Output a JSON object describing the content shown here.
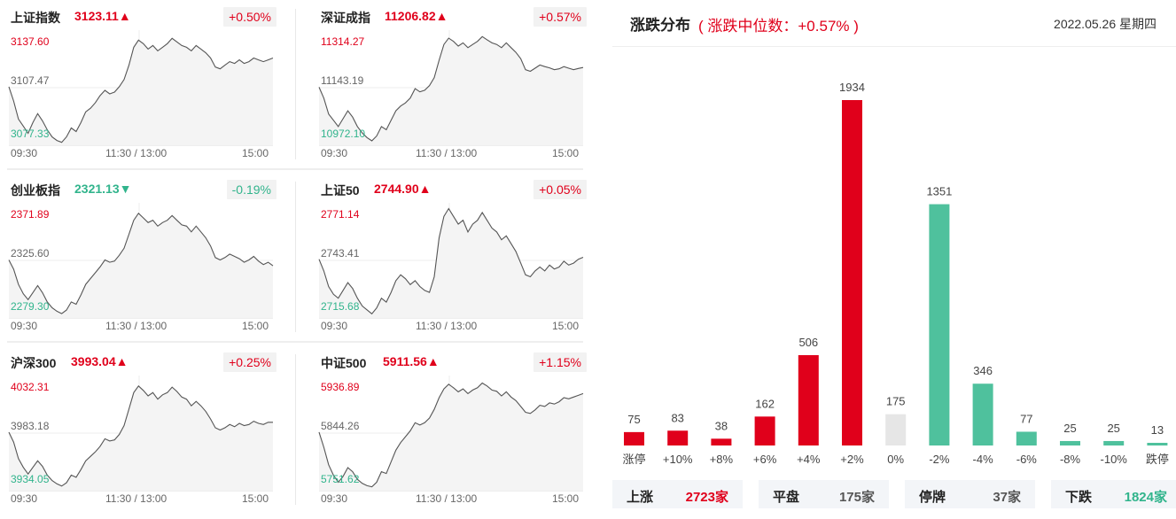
{
  "indices": [
    {
      "name": "上证指数",
      "value": "3123.11",
      "change_pct": "+0.50%",
      "direction": "up",
      "y_high": "3137.60",
      "y_mid": "3107.47",
      "y_low": "3077.33",
      "x_start": "09:30",
      "x_mid": "11:30 / 13:00",
      "x_end": "15:00",
      "series": [
        3108,
        3100,
        3090,
        3086,
        3082,
        3088,
        3093,
        3089,
        3084,
        3080,
        3078,
        3077,
        3080,
        3085,
        3083,
        3088,
        3094,
        3096,
        3099,
        3103,
        3106,
        3104,
        3105,
        3108,
        3112,
        3120,
        3130,
        3134,
        3132,
        3129,
        3131,
        3128,
        3130,
        3132,
        3135,
        3133,
        3131,
        3130,
        3128,
        3131,
        3129,
        3127,
        3124,
        3119,
        3118,
        3120,
        3122,
        3121,
        3123,
        3121,
        3122,
        3124,
        3123,
        3122,
        3123,
        3124
      ]
    },
    {
      "name": "深证成指",
      "value": "11206.82",
      "change_pct": "+0.57%",
      "direction": "up",
      "y_high": "11314.27",
      "y_mid": "11143.19",
      "y_low": "10972.10",
      "x_start": "09:30",
      "x_mid": "11:30 / 13:00",
      "x_end": "15:00",
      "series": [
        11145,
        11110,
        11060,
        11040,
        11020,
        11045,
        11070,
        11050,
        11020,
        11000,
        10985,
        10975,
        10990,
        11020,
        11010,
        11040,
        11070,
        11085,
        11095,
        11110,
        11140,
        11130,
        11135,
        11150,
        11175,
        11230,
        11280,
        11300,
        11290,
        11275,
        11285,
        11270,
        11280,
        11290,
        11305,
        11295,
        11285,
        11280,
        11270,
        11285,
        11270,
        11255,
        11235,
        11200,
        11195,
        11205,
        11215,
        11210,
        11206,
        11200,
        11203,
        11210,
        11205,
        11200,
        11204,
        11207
      ]
    },
    {
      "name": "创业板指",
      "value": "2321.13",
      "change_pct": "-0.19%",
      "direction": "down",
      "y_high": "2371.89",
      "y_mid": "2325.60",
      "y_low": "2279.30",
      "x_start": "09:30",
      "x_mid": "11:30 / 13:00",
      "x_end": "15:00",
      "series": [
        2326,
        2318,
        2305,
        2297,
        2292,
        2298,
        2304,
        2298,
        2290,
        2285,
        2282,
        2280,
        2283,
        2290,
        2288,
        2296,
        2305,
        2310,
        2315,
        2320,
        2326,
        2324,
        2325,
        2330,
        2336,
        2348,
        2360,
        2366,
        2362,
        2358,
        2360,
        2355,
        2358,
        2360,
        2364,
        2360,
        2356,
        2355,
        2350,
        2355,
        2350,
        2345,
        2338,
        2328,
        2326,
        2328,
        2331,
        2329,
        2327,
        2324,
        2326,
        2329,
        2325,
        2322,
        2324,
        2321
      ]
    },
    {
      "name": "上证50",
      "value": "2744.90",
      "change_pct": "+0.05%",
      "direction": "up",
      "y_high": "2771.14",
      "y_mid": "2743.41",
      "y_low": "2715.68",
      "x_start": "09:30",
      "x_mid": "11:30 / 13:00",
      "x_end": "15:00",
      "series": [
        2744,
        2738,
        2730,
        2726,
        2724,
        2728,
        2732,
        2729,
        2724,
        2720,
        2718,
        2716,
        2719,
        2724,
        2722,
        2727,
        2733,
        2736,
        2734,
        2731,
        2733,
        2730,
        2728,
        2727,
        2735,
        2755,
        2766,
        2770,
        2766,
        2762,
        2764,
        2758,
        2762,
        2764,
        2768,
        2764,
        2760,
        2758,
        2754,
        2756,
        2752,
        2748,
        2742,
        2736,
        2735,
        2738,
        2740,
        2738,
        2741,
        2739,
        2740,
        2743,
        2741,
        2742,
        2744,
        2745
      ]
    },
    {
      "name": "沪深300",
      "value": "3993.04",
      "change_pct": "+0.25%",
      "direction": "up",
      "y_high": "4032.31",
      "y_mid": "3983.18",
      "y_low": "3934.05",
      "x_start": "09:30",
      "x_mid": "11:30 / 13:00",
      "x_end": "15:00",
      "series": [
        3984,
        3975,
        3960,
        3952,
        3946,
        3952,
        3958,
        3953,
        3945,
        3940,
        3937,
        3935,
        3938,
        3945,
        3943,
        3950,
        3958,
        3962,
        3966,
        3971,
        3978,
        3976,
        3977,
        3982,
        3990,
        4005,
        4020,
        4026,
        4022,
        4017,
        4020,
        4014,
        4018,
        4020,
        4025,
        4021,
        4016,
        4014,
        4008,
        4012,
        4008,
        4003,
        3996,
        3988,
        3986,
        3988,
        3991,
        3989,
        3992,
        3990,
        3991,
        3994,
        3992,
        3991,
        3993,
        3993
      ]
    },
    {
      "name": "中证500",
      "value": "5911.56",
      "change_pct": "+1.15%",
      "direction": "up",
      "y_high": "5936.89",
      "y_mid": "5844.26",
      "y_low": "5751.62",
      "x_start": "09:30",
      "x_mid": "11:30 / 13:00",
      "x_end": "15:00",
      "series": [
        5846,
        5820,
        5790,
        5772,
        5760,
        5770,
        5785,
        5778,
        5765,
        5758,
        5754,
        5752,
        5760,
        5778,
        5775,
        5795,
        5815,
        5828,
        5838,
        5848,
        5862,
        5858,
        5862,
        5870,
        5885,
        5905,
        5920,
        5928,
        5922,
        5915,
        5920,
        5912,
        5918,
        5922,
        5930,
        5925,
        5918,
        5916,
        5908,
        5915,
        5906,
        5900,
        5890,
        5880,
        5878,
        5884,
        5892,
        5890,
        5896,
        5894,
        5898,
        5905,
        5903,
        5906,
        5909,
        5912
      ]
    }
  ],
  "distribution": {
    "title": "涨跌分布",
    "median_text": "( 涨跌中位数：+0.57% )",
    "date": "2022.05.26 星期四",
    "colors": {
      "up": "#e0001b",
      "flat": "#e6e6e6",
      "down": "#4fc19d"
    },
    "chart_data": {
      "type": "bar",
      "categories": [
        "涨停",
        "+10%",
        "+8%",
        "+6%",
        "+4%",
        "+2%",
        "0%",
        "-2%",
        "-4%",
        "-6%",
        "-8%",
        "-10%",
        "跌停"
      ],
      "values": [
        75,
        83,
        38,
        162,
        506,
        1934,
        175,
        1351,
        346,
        77,
        25,
        25,
        13
      ],
      "directions": [
        "up",
        "up",
        "up",
        "up",
        "up",
        "up",
        "flat",
        "down",
        "down",
        "down",
        "down",
        "down",
        "down"
      ],
      "title": "",
      "xlabel": "",
      "ylabel": "",
      "ylim": [
        0,
        1934
      ]
    },
    "summary": [
      {
        "label": "上涨",
        "value": "2723家",
        "kind": "up"
      },
      {
        "label": "平盘",
        "value": "175家",
        "kind": "flat"
      },
      {
        "label": "停牌",
        "value": "37家",
        "kind": "halt"
      },
      {
        "label": "下跌",
        "value": "1824家",
        "kind": "down"
      }
    ]
  }
}
